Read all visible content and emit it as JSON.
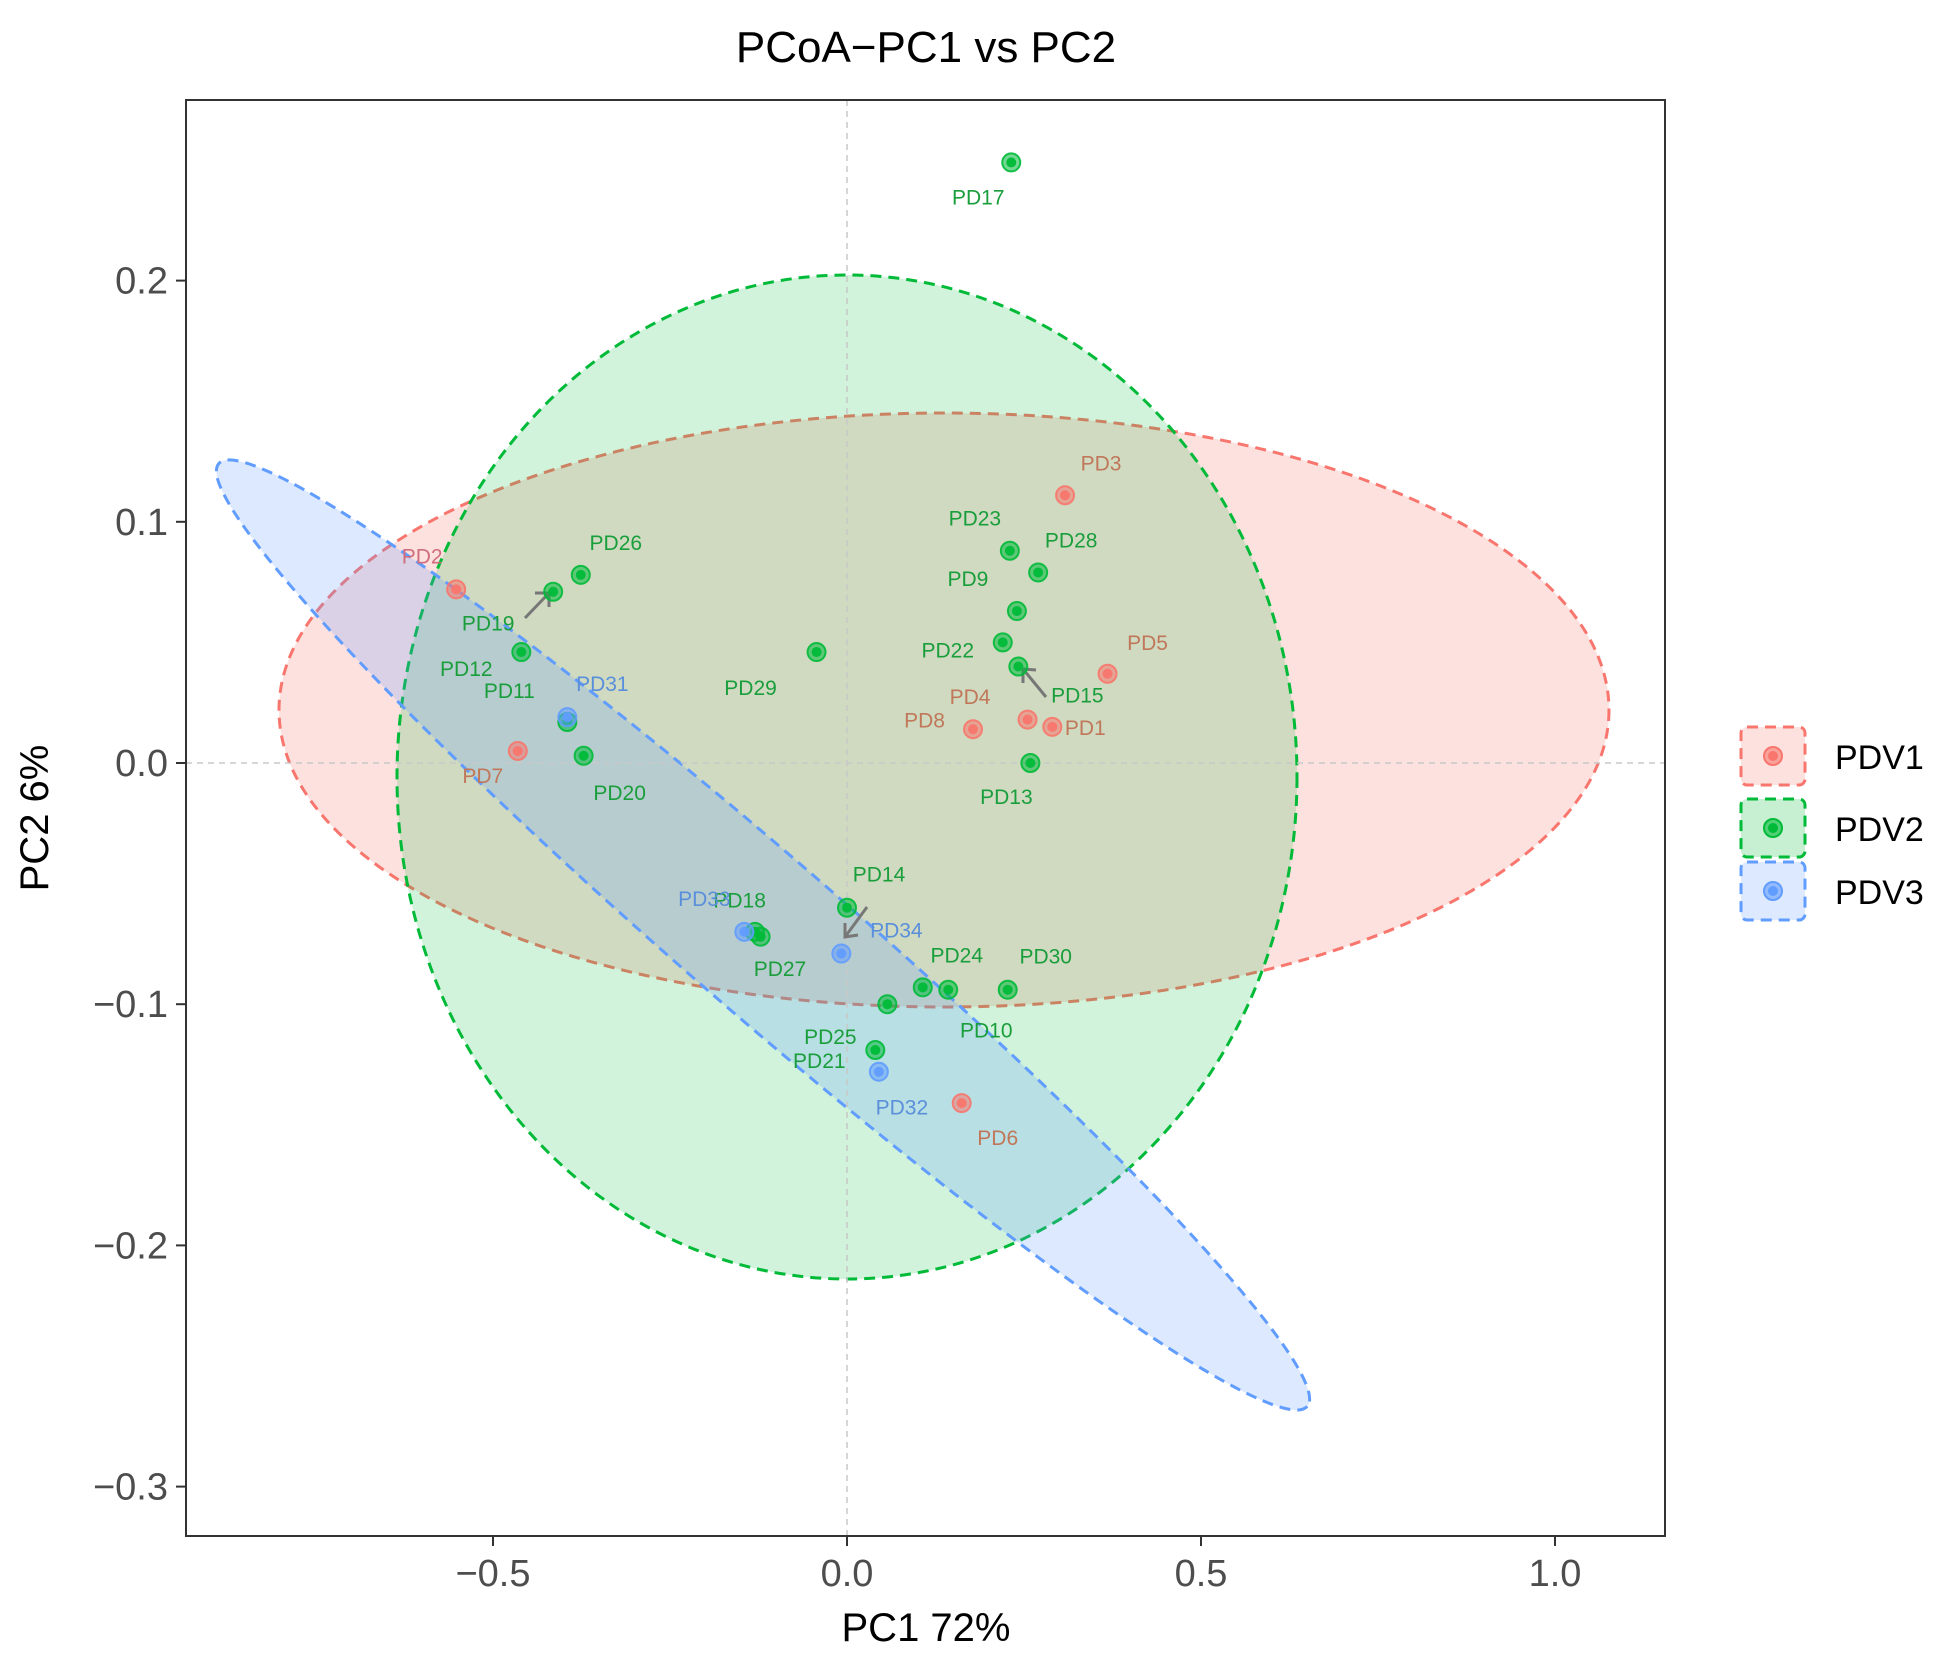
{
  "chart_data": {
    "type": "scatter",
    "title": "PCoA−PC1 vs PC2",
    "xlabel": "PC1 72%",
    "ylabel": "PC2 6%",
    "xlim": [
      -0.93,
      1.15
    ],
    "ylim": [
      -0.322,
      0.275
    ],
    "xticks": [
      -0.5,
      0.0,
      0.5,
      1.0
    ],
    "xtick_labels": [
      "−0.5",
      "0.0",
      "0.5",
      "1.0"
    ],
    "yticks": [
      -0.3,
      -0.2,
      -0.1,
      0.0,
      0.1,
      0.2
    ],
    "ytick_labels": [
      "−0.3",
      "−0.2",
      "−0.1",
      "0.0",
      "0.1",
      "0.2"
    ],
    "reference_lines": {
      "x": 0,
      "y": 0,
      "style": "dashed-grey"
    },
    "grid": false,
    "legend_position": "right",
    "series": [
      {
        "name": "PDV1",
        "color": "#F8766D",
        "points": [
          {
            "label": "PD1",
            "x": 0.29,
            "y": 0.015
          },
          {
            "label": "PD2",
            "x": -0.552,
            "y": 0.072
          },
          {
            "label": "PD3",
            "x": 0.308,
            "y": 0.111
          },
          {
            "label": "PD4",
            "x": 0.178,
            "y": 0.014
          },
          {
            "label": "PD5",
            "x": 0.368,
            "y": 0.037
          },
          {
            "label": "PD6",
            "x": 0.162,
            "y": -0.141
          },
          {
            "label": "PD7",
            "x": -0.465,
            "y": 0.005
          },
          {
            "label": "PD8",
            "x": 0.255,
            "y": 0.018
          }
        ]
      },
      {
        "name": "PDV2",
        "color": "#00BA38",
        "points": [
          {
            "label": "PD9",
            "x": 0.24,
            "y": 0.063
          },
          {
            "label": "PD10",
            "x": 0.143,
            "y": -0.094
          },
          {
            "label": "PD11",
            "x": -0.395,
            "y": 0.017
          },
          {
            "label": "PD12",
            "x": -0.46,
            "y": 0.046
          },
          {
            "label": "PD13",
            "x": 0.259,
            "y": 0.0
          },
          {
            "label": "PD14",
            "x": 0.0,
            "y": -0.06
          },
          {
            "label": "PD15",
            "x": 0.242,
            "y": 0.04
          },
          {
            "label": "PD17",
            "x": 0.232,
            "y": 0.249
          },
          {
            "label": "PD18",
            "x": -0.122,
            "y": -0.072
          },
          {
            "label": "PD19",
            "x": -0.415,
            "y": 0.071
          },
          {
            "label": "PD20",
            "x": -0.372,
            "y": 0.003
          },
          {
            "label": "PD21",
            "x": 0.04,
            "y": -0.119
          },
          {
            "label": "PD22",
            "x": 0.22,
            "y": 0.05
          },
          {
            "label": "PD23",
            "x": 0.23,
            "y": 0.088
          },
          {
            "label": "PD24",
            "x": 0.107,
            "y": -0.093
          },
          {
            "label": "PD25",
            "x": 0.057,
            "y": -0.1
          },
          {
            "label": "PD26",
            "x": -0.376,
            "y": 0.078
          },
          {
            "label": "PD27",
            "x": -0.13,
            "y": -0.07
          },
          {
            "label": "PD28",
            "x": 0.27,
            "y": 0.079
          },
          {
            "label": "PD29",
            "x": -0.043,
            "y": 0.046
          },
          {
            "label": "PD30",
            "x": 0.227,
            "y": -0.094
          }
        ]
      },
      {
        "name": "PDV3",
        "color": "#619CFF",
        "points": [
          {
            "label": "PD31",
            "x": -0.395,
            "y": 0.019
          },
          {
            "label": "PD32",
            "x": 0.045,
            "y": -0.128
          },
          {
            "label": "PD33",
            "x": -0.145,
            "y": -0.07
          },
          {
            "label": "PD34",
            "x": -0.008,
            "y": -0.079
          }
        ]
      }
    ]
  }
}
